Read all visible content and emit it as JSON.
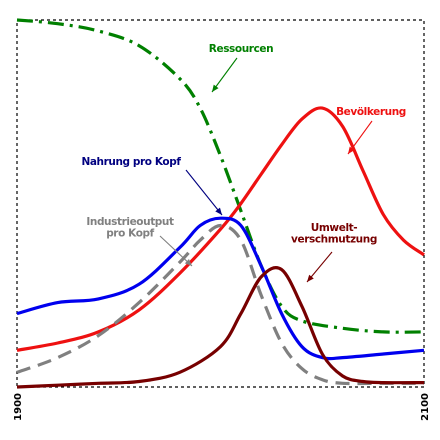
{
  "chart_data": {
    "type": "line",
    "title": "",
    "xlabel": "",
    "ylabel": "",
    "xlim": [
      1900,
      2100
    ],
    "ylim": [
      0,
      1
    ],
    "grid": false,
    "x_ticks": [
      "1900",
      "2100"
    ],
    "series": [
      {
        "name": "Ressourcen",
        "color": "#008000",
        "style": "dash-dot",
        "x": [
          1900,
          1920,
          1940,
          1960,
          1980,
          1990,
          2000,
          2010,
          2020,
          2030,
          2040,
          2060,
          2080,
          2100
        ],
        "y": [
          1.0,
          0.99,
          0.97,
          0.93,
          0.84,
          0.76,
          0.63,
          0.48,
          0.33,
          0.22,
          0.18,
          0.16,
          0.15,
          0.15
        ]
      },
      {
        "name": "Bevölkerung",
        "color": "#ee1111",
        "style": "solid",
        "x": [
          1900,
          1920,
          1940,
          1960,
          1980,
          2000,
          2010,
          2020,
          2030,
          2040,
          2050,
          2060,
          2070,
          2080,
          2090,
          2100
        ],
        "y": [
          0.1,
          0.12,
          0.15,
          0.21,
          0.31,
          0.43,
          0.5,
          0.58,
          0.66,
          0.73,
          0.76,
          0.71,
          0.59,
          0.47,
          0.4,
          0.36
        ]
      },
      {
        "name": "Nahrung pro Kopf",
        "color": "#0000ee",
        "style": "solid",
        "x": [
          1900,
          1920,
          1940,
          1960,
          1980,
          1990,
          2000,
          2010,
          2020,
          2030,
          2040,
          2050,
          2060,
          2080,
          2100
        ],
        "y": [
          0.2,
          0.23,
          0.24,
          0.28,
          0.38,
          0.44,
          0.46,
          0.44,
          0.33,
          0.2,
          0.11,
          0.08,
          0.08,
          0.09,
          0.1
        ]
      },
      {
        "name": "Industrieoutput pro Kopf",
        "color": "#808080",
        "style": "dashed",
        "x": [
          1900,
          1920,
          1940,
          1960,
          1980,
          1990,
          2000,
          2010,
          2020,
          2030,
          2040,
          2050,
          2060,
          2080,
          2100
        ],
        "y": [
          0.04,
          0.08,
          0.14,
          0.23,
          0.34,
          0.4,
          0.44,
          0.4,
          0.25,
          0.12,
          0.05,
          0.02,
          0.01,
          0.01,
          0.01
        ]
      },
      {
        "name": "Umweltverschmutzung",
        "color": "#770000",
        "style": "solid",
        "x": [
          1900,
          1920,
          1940,
          1960,
          1980,
          2000,
          2010,
          2020,
          2030,
          2040,
          2050,
          2060,
          2070,
          2080,
          2100
        ],
        "y": [
          0.0,
          0.005,
          0.01,
          0.015,
          0.04,
          0.11,
          0.2,
          0.3,
          0.32,
          0.22,
          0.09,
          0.03,
          0.015,
          0.012,
          0.012
        ]
      }
    ],
    "annotations": [
      {
        "series": 0,
        "lines": [
          "Ressourcen"
        ],
        "color": "#008000"
      },
      {
        "series": 1,
        "lines": [
          "Bevölkerung"
        ],
        "color": "#ee1111"
      },
      {
        "series": 2,
        "lines": [
          "Nahrung pro Kopf"
        ],
        "color": "#000080"
      },
      {
        "series": 3,
        "lines": [
          "Industrieoutput",
          "pro Kopf"
        ],
        "color": "#808080"
      },
      {
        "series": 4,
        "lines": [
          "Umwelt-",
          "verschmutzung"
        ],
        "color": "#770000"
      }
    ]
  }
}
